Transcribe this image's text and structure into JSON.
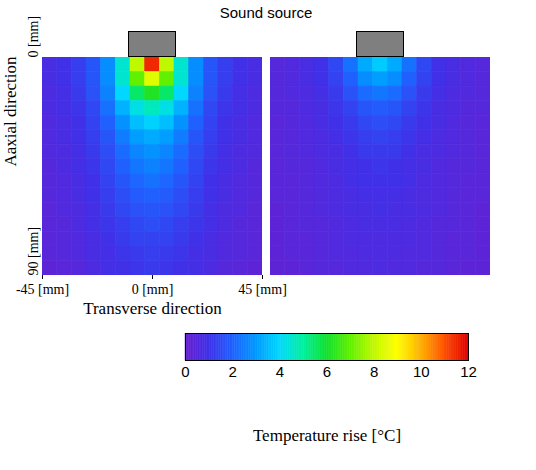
{
  "chart_data": {
    "type": "heatmap",
    "annotation": "Sound source",
    "x_label": "Transverse direction",
    "y_label": "Aaxial direction",
    "xlim": [
      -45,
      45
    ],
    "xticks": [
      {
        "value": -45,
        "label": "-45 [mm]"
      },
      {
        "value": 0,
        "label": "0 [mm]"
      },
      {
        "value": 45,
        "label": "45 [mm]"
      }
    ],
    "ylim": [
      0,
      90
    ],
    "yticks": [
      {
        "value": 0,
        "label": "0 [mm]"
      },
      {
        "value": 90,
        "label": "90 [mm]"
      }
    ],
    "x": [
      -42,
      -36,
      -30,
      -24,
      -18,
      -12,
      -6,
      0,
      6,
      12,
      18,
      24,
      30,
      36,
      42
    ],
    "y": [
      3,
      9,
      15,
      21,
      27,
      33,
      39,
      45,
      51,
      57,
      63,
      69,
      75,
      81,
      87
    ],
    "panels": [
      {
        "values": [
          [
            0.8,
            1.0,
            1.3,
            1.8,
            2.8,
            4.5,
            8,
            11.5,
            8,
            4.5,
            2.8,
            1.8,
            1.3,
            1.0,
            0.8
          ],
          [
            0.8,
            1.0,
            1.3,
            1.8,
            2.8,
            4.5,
            7,
            8.5,
            7,
            4.5,
            2.8,
            1.8,
            1.3,
            1.0,
            0.8
          ],
          [
            0.7,
            0.9,
            1.2,
            1.7,
            2.6,
            4.0,
            5.5,
            6.2,
            5.5,
            4.0,
            2.6,
            1.7,
            1.2,
            0.9,
            0.7
          ],
          [
            0.7,
            0.9,
            1.1,
            1.5,
            2.3,
            3.4,
            4.3,
            4.7,
            4.3,
            3.4,
            2.3,
            1.5,
            1.1,
            0.9,
            0.7
          ],
          [
            0.6,
            0.8,
            1.0,
            1.4,
            2.0,
            2.9,
            3.6,
            3.9,
            3.6,
            2.9,
            2.0,
            1.4,
            1.0,
            0.8,
            0.6
          ],
          [
            0.6,
            0.8,
            1.0,
            1.3,
            1.8,
            2.5,
            3.1,
            3.3,
            3.1,
            2.5,
            1.8,
            1.3,
            1.0,
            0.8,
            0.6
          ],
          [
            0.6,
            0.7,
            0.9,
            1.2,
            1.6,
            2.2,
            2.7,
            2.9,
            2.7,
            2.2,
            1.6,
            1.2,
            0.9,
            0.7,
            0.6
          ],
          [
            0.5,
            0.7,
            0.9,
            1.1,
            1.5,
            2.0,
            2.4,
            2.6,
            2.4,
            2.0,
            1.5,
            1.1,
            0.9,
            0.7,
            0.5
          ],
          [
            0.5,
            0.6,
            0.8,
            1.0,
            1.4,
            1.8,
            2.1,
            2.3,
            2.1,
            1.8,
            1.4,
            1.0,
            0.8,
            0.6,
            0.5
          ],
          [
            0.5,
            0.6,
            0.8,
            1.0,
            1.3,
            1.6,
            1.9,
            2.0,
            1.9,
            1.6,
            1.3,
            1.0,
            0.8,
            0.6,
            0.5
          ],
          [
            0.4,
            0.6,
            0.7,
            0.9,
            1.2,
            1.5,
            1.7,
            1.8,
            1.7,
            1.5,
            1.2,
            0.9,
            0.7,
            0.6,
            0.4
          ],
          [
            0.4,
            0.5,
            0.7,
            0.9,
            1.1,
            1.3,
            1.5,
            1.6,
            1.5,
            1.3,
            1.1,
            0.9,
            0.7,
            0.5,
            0.4
          ],
          [
            0.4,
            0.5,
            0.6,
            0.8,
            1.0,
            1.2,
            1.4,
            1.4,
            1.4,
            1.2,
            1.0,
            0.8,
            0.6,
            0.5,
            0.4
          ],
          [
            0.4,
            0.5,
            0.6,
            0.8,
            0.9,
            1.1,
            1.2,
            1.3,
            1.2,
            1.1,
            0.9,
            0.8,
            0.6,
            0.5,
            0.4
          ],
          [
            0.3,
            0.4,
            0.5,
            0.7,
            0.9,
            1.0,
            1.1,
            1.2,
            1.1,
            1.0,
            0.9,
            0.7,
            0.5,
            0.4,
            0.3
          ]
        ]
      },
      {
        "tick_labels": false,
        "values": [
          [
            0.5,
            0.6,
            0.8,
            1.0,
            1.5,
            2.3,
            3.3,
            3.8,
            3.3,
            2.3,
            1.5,
            1.0,
            0.8,
            0.6,
            0.5
          ],
          [
            0.5,
            0.6,
            0.8,
            1.0,
            1.4,
            2.0,
            2.8,
            3.1,
            2.8,
            2.0,
            1.4,
            1.0,
            0.8,
            0.6,
            0.5
          ],
          [
            0.5,
            0.6,
            0.7,
            0.9,
            1.2,
            1.7,
            2.2,
            2.4,
            2.2,
            1.7,
            1.2,
            0.9,
            0.7,
            0.6,
            0.5
          ],
          [
            0.5,
            0.5,
            0.7,
            0.8,
            1.1,
            1.4,
            1.8,
            1.9,
            1.8,
            1.4,
            1.1,
            0.8,
            0.7,
            0.5,
            0.5
          ],
          [
            0.4,
            0.5,
            0.6,
            0.8,
            1.0,
            1.2,
            1.5,
            1.6,
            1.5,
            1.2,
            1.0,
            0.8,
            0.6,
            0.5,
            0.4
          ],
          [
            0.4,
            0.5,
            0.6,
            0.7,
            0.9,
            1.1,
            1.3,
            1.4,
            1.3,
            1.1,
            0.9,
            0.7,
            0.6,
            0.5,
            0.4
          ],
          [
            0.4,
            0.5,
            0.6,
            0.7,
            0.8,
            1.0,
            1.2,
            1.2,
            1.2,
            1.0,
            0.8,
            0.7,
            0.6,
            0.5,
            0.4
          ],
          [
            0.4,
            0.5,
            0.5,
            0.6,
            0.8,
            0.9,
            1.0,
            1.1,
            1.0,
            0.9,
            0.8,
            0.6,
            0.5,
            0.5,
            0.4
          ],
          [
            0.4,
            0.4,
            0.5,
            0.6,
            0.7,
            0.9,
            1.0,
            1.0,
            1.0,
            0.9,
            0.7,
            0.6,
            0.5,
            0.4,
            0.4
          ],
          [
            0.4,
            0.4,
            0.5,
            0.6,
            0.7,
            0.8,
            0.9,
            0.9,
            0.9,
            0.8,
            0.7,
            0.6,
            0.5,
            0.4,
            0.4
          ],
          [
            0.3,
            0.4,
            0.5,
            0.6,
            0.7,
            0.8,
            0.8,
            0.9,
            0.8,
            0.8,
            0.7,
            0.6,
            0.5,
            0.4,
            0.3
          ],
          [
            0.3,
            0.4,
            0.5,
            0.5,
            0.6,
            0.7,
            0.8,
            0.8,
            0.8,
            0.7,
            0.6,
            0.5,
            0.5,
            0.4,
            0.3
          ],
          [
            0.3,
            0.4,
            0.4,
            0.5,
            0.6,
            0.7,
            0.7,
            0.7,
            0.7,
            0.7,
            0.6,
            0.5,
            0.4,
            0.4,
            0.3
          ],
          [
            0.3,
            0.4,
            0.4,
            0.5,
            0.6,
            0.6,
            0.7,
            0.7,
            0.7,
            0.6,
            0.6,
            0.5,
            0.4,
            0.4,
            0.3
          ],
          [
            0.3,
            0.3,
            0.4,
            0.5,
            0.5,
            0.6,
            0.6,
            0.7,
            0.6,
            0.6,
            0.5,
            0.5,
            0.4,
            0.3,
            0.3
          ]
        ]
      }
    ],
    "colorbar": {
      "range": [
        0,
        12
      ],
      "ticks": [
        0,
        2,
        4,
        6,
        8,
        10,
        12
      ],
      "label": "Temperature rise [°C]"
    }
  }
}
